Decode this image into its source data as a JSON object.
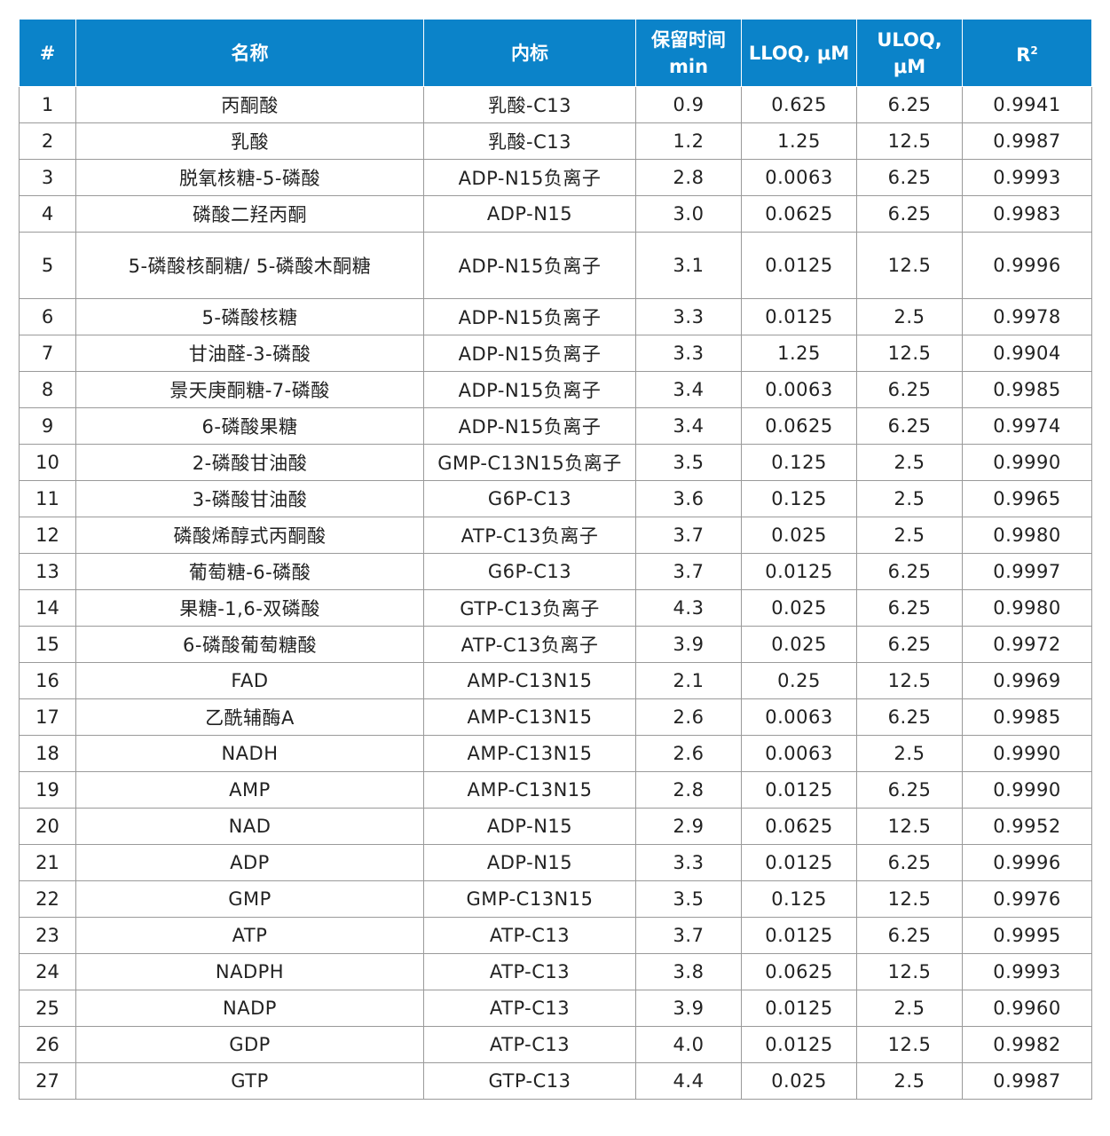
{
  "headers": {
    "index": "#",
    "name": "名称",
    "internal_standard": "内标",
    "retention_time": "保留时间 min",
    "lloq": "LLOQ, μM",
    "uloq": "ULOQ, μM",
    "r2_base": "R",
    "r2_sup": "2"
  },
  "rows": [
    {
      "n": "1",
      "name": "丙酮酸",
      "is": "乳酸-C13",
      "rt": "0.9",
      "lloq": "0.625",
      "uloq": "6.25",
      "r2": "0.9941"
    },
    {
      "n": "2",
      "name": "乳酸",
      "is": "乳酸-C13",
      "rt": "1.2",
      "lloq": "1.25",
      "uloq": "12.5",
      "r2": "0.9987"
    },
    {
      "n": "3",
      "name": "脱氧核糖-5-磷酸",
      "is": "ADP-N15负离子",
      "rt": "2.8",
      "lloq": "0.0063",
      "uloq": "6.25",
      "r2": "0.9993"
    },
    {
      "n": "4",
      "name": "磷酸二羟丙酮",
      "is": "ADP-N15",
      "rt": "3.0",
      "lloq": "0.0625",
      "uloq": "6.25",
      "r2": "0.9983"
    },
    {
      "n": "5",
      "name": "5-磷酸核酮糖/ 5-磷酸木酮糖",
      "is": "ADP-N15负离子",
      "rt": "3.1",
      "lloq": "0.0125",
      "uloq": "12.5",
      "r2": "0.9996"
    },
    {
      "n": "6",
      "name": "5-磷酸核糖",
      "is": "ADP-N15负离子",
      "rt": "3.3",
      "lloq": "0.0125",
      "uloq": "2.5",
      "r2": "0.9978"
    },
    {
      "n": "7",
      "name": "甘油醛-3-磷酸",
      "is": "ADP-N15负离子",
      "rt": "3.3",
      "lloq": "1.25",
      "uloq": "12.5",
      "r2": "0.9904"
    },
    {
      "n": "8",
      "name": "景天庚酮糖-7-磷酸",
      "is": "ADP-N15负离子",
      "rt": "3.4",
      "lloq": "0.0063",
      "uloq": "6.25",
      "r2": "0.9985"
    },
    {
      "n": "9",
      "name": "6-磷酸果糖",
      "is": "ADP-N15负离子",
      "rt": "3.4",
      "lloq": "0.0625",
      "uloq": "6.25",
      "r2": "0.9974"
    },
    {
      "n": "10",
      "name": "2-磷酸甘油酸",
      "is": "GMP-C13N15负离子",
      "rt": "3.5",
      "lloq": "0.125",
      "uloq": "2.5",
      "r2": "0.9990"
    },
    {
      "n": "11",
      "name": "3-磷酸甘油酸",
      "is": "G6P-C13",
      "rt": "3.6",
      "lloq": "0.125",
      "uloq": "2.5",
      "r2": "0.9965"
    },
    {
      "n": "12",
      "name": "磷酸烯醇式丙酮酸",
      "is": "ATP-C13负离子",
      "rt": "3.7",
      "lloq": "0.025",
      "uloq": "2.5",
      "r2": "0.9980"
    },
    {
      "n": "13",
      "name": "葡萄糖-6-磷酸",
      "is": "G6P-C13",
      "rt": "3.7",
      "lloq": "0.0125",
      "uloq": "6.25",
      "r2": "0.9997"
    },
    {
      "n": "14",
      "name": "果糖-1,6-双磷酸",
      "is": "GTP-C13负离子",
      "rt": "4.3",
      "lloq": "0.025",
      "uloq": "6.25",
      "r2": "0.9980"
    },
    {
      "n": "15",
      "name": "6-磷酸葡萄糖酸",
      "is": "ATP-C13负离子",
      "rt": "3.9",
      "lloq": "0.025",
      "uloq": "6.25",
      "r2": "0.9972"
    },
    {
      "n": "16",
      "name": "FAD",
      "is": "AMP-C13N15",
      "rt": "2.1",
      "lloq": "0.25",
      "uloq": "12.5",
      "r2": "0.9969"
    },
    {
      "n": "17",
      "name": "乙酰辅酶A",
      "is": "AMP-C13N15",
      "rt": "2.6",
      "lloq": "0.0063",
      "uloq": "6.25",
      "r2": "0.9985"
    },
    {
      "n": "18",
      "name": "NADH",
      "is": "AMP-C13N15",
      "rt": "2.6",
      "lloq": "0.0063",
      "uloq": "2.5",
      "r2": "0.9990"
    },
    {
      "n": "19",
      "name": "AMP",
      "is": "AMP-C13N15",
      "rt": "2.8",
      "lloq": "0.0125",
      "uloq": "6.25",
      "r2": "0.9990"
    },
    {
      "n": "20",
      "name": "NAD",
      "is": "ADP-N15",
      "rt": "2.9",
      "lloq": "0.0625",
      "uloq": "12.5",
      "r2": "0.9952"
    },
    {
      "n": "21",
      "name": "ADP",
      "is": "ADP-N15",
      "rt": "3.3",
      "lloq": "0.0125",
      "uloq": "6.25",
      "r2": "0.9996"
    },
    {
      "n": "22",
      "name": "GMP",
      "is": "GMP-C13N15",
      "rt": "3.5",
      "lloq": "0.125",
      "uloq": "12.5",
      "r2": "0.9976"
    },
    {
      "n": "23",
      "name": "ATP",
      "is": "ATP-C13",
      "rt": "3.7",
      "lloq": "0.0125",
      "uloq": "6.25",
      "r2": "0.9995"
    },
    {
      "n": "24",
      "name": "NADPH",
      "is": "ATP-C13",
      "rt": "3.8",
      "lloq": "0.0625",
      "uloq": "12.5",
      "r2": "0.9993"
    },
    {
      "n": "25",
      "name": "NADP",
      "is": "ATP-C13",
      "rt": "3.9",
      "lloq": "0.0125",
      "uloq": "2.5",
      "r2": "0.9960"
    },
    {
      "n": "26",
      "name": "GDP",
      "is": "ATP-C13",
      "rt": "4.0",
      "lloq": "0.0125",
      "uloq": "12.5",
      "r2": "0.9982"
    },
    {
      "n": "27",
      "name": "GTP",
      "is": "GTP-C13",
      "rt": "4.4",
      "lloq": "0.025",
      "uloq": "2.5",
      "r2": "0.9987"
    }
  ]
}
